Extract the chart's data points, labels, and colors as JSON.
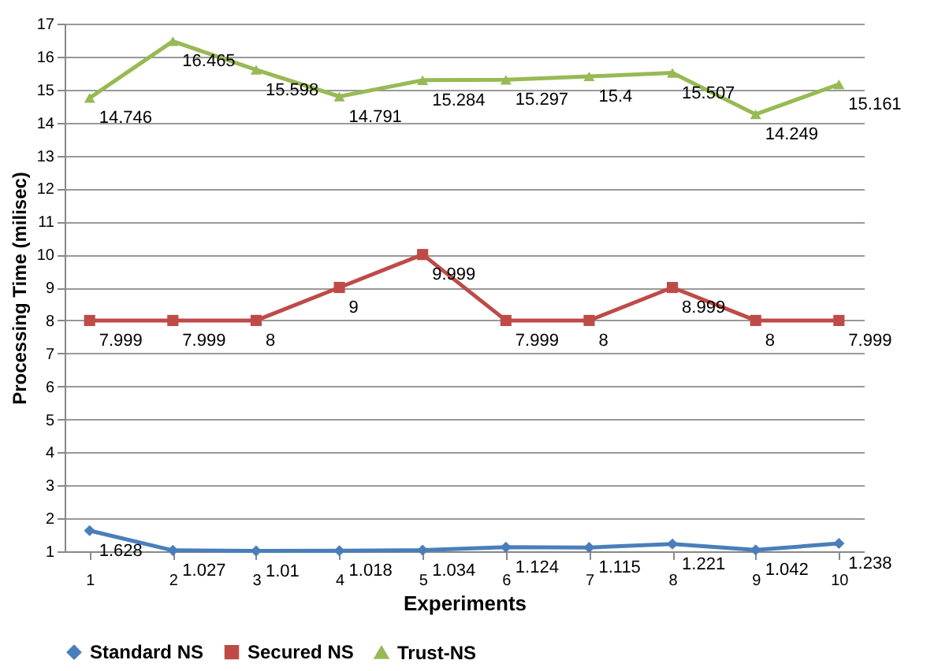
{
  "chart_data": {
    "type": "line",
    "xlabel": "Experiments",
    "ylabel": "Processing Time (milisec)",
    "categories": [
      "1",
      "2",
      "3",
      "4",
      "5",
      "6",
      "7",
      "8",
      "9",
      "10"
    ],
    "series": [
      {
        "name": "Standard NS",
        "color": "#4a7ebb",
        "marker": "diamond",
        "values": [
          1.628,
          1.027,
          1.01,
          1.018,
          1.034,
          1.124,
          1.115,
          1.221,
          1.042,
          1.238
        ]
      },
      {
        "name": "Secured NS",
        "color": "#be4b48",
        "marker": "square",
        "values": [
          7.999,
          7.999,
          8,
          9,
          9.999,
          7.999,
          8,
          8.999,
          8,
          7.999
        ]
      },
      {
        "name": "Trust-NS",
        "color": "#98b954",
        "marker": "triangle",
        "values": [
          14.746,
          16.465,
          15.598,
          14.791,
          15.284,
          15.297,
          15.4,
          15.507,
          14.249,
          15.161
        ]
      }
    ],
    "ylim": [
      1,
      17
    ],
    "yticks": [
      1,
      2,
      3,
      4,
      5,
      6,
      7,
      8,
      9,
      10,
      11,
      12,
      13,
      14,
      15,
      16,
      17
    ],
    "grid": "y",
    "legend": "bottom",
    "data_labels": true,
    "line_style": "solid"
  }
}
